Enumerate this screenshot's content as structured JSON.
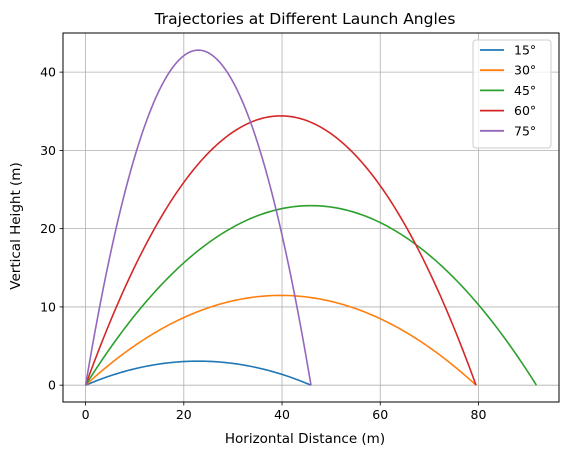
{
  "chart_data": {
    "type": "line",
    "title": "Trajectories at Different Launch Angles",
    "xlabel": "Horizontal Distance (m)",
    "ylabel": "Vertical Height (m)",
    "xlim": [
      -4.6,
      96.4
    ],
    "ylim": [
      -2.15,
      45.0
    ],
    "xticks": [
      0,
      20,
      40,
      60,
      80
    ],
    "yticks": [
      0,
      10,
      20,
      30,
      40
    ],
    "grid": true,
    "legend_position": "top-right",
    "series": [
      {
        "name": "15°",
        "color": "#1f77b4",
        "range": 45.9,
        "max_height": 3.07
      },
      {
        "name": "30°",
        "color": "#ff7f0e",
        "range": 79.5,
        "max_height": 11.47
      },
      {
        "name": "45°",
        "color": "#2ca02c",
        "range": 91.8,
        "max_height": 22.94
      },
      {
        "name": "60°",
        "color": "#d62728",
        "range": 79.5,
        "max_height": 34.41
      },
      {
        "name": "75°",
        "color": "#9467bd",
        "range": 45.9,
        "max_height": 42.81
      }
    ]
  }
}
